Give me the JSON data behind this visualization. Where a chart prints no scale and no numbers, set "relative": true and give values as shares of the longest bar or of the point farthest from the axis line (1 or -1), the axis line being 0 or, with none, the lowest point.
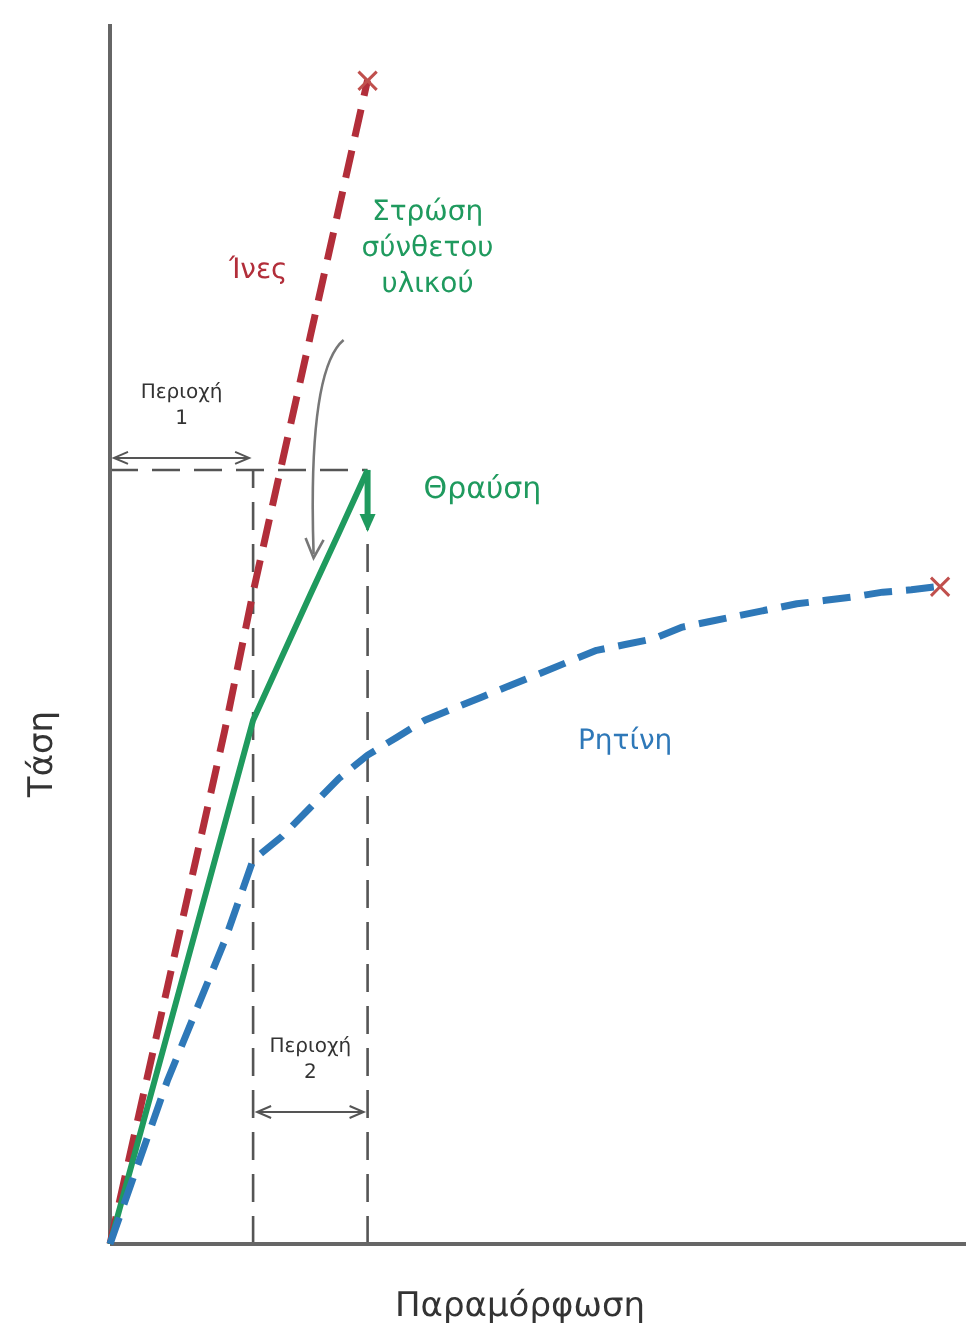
{
  "chart_data": {
    "type": "line",
    "relative": true,
    "xlabel": "Παραμόρφωση",
    "ylabel": "Τάση",
    "tick_labels": false,
    "grid": false,
    "legend": false,
    "categories": [
      null,
      null,
      null,
      null,
      null,
      null,
      null,
      null,
      null,
      null,
      null,
      null,
      null,
      null,
      null,
      null,
      null,
      null,
      null,
      null,
      null,
      null,
      null,
      null,
      null,
      null,
      null,
      null,
      null,
      null
    ],
    "series": [
      {
        "name": "Ίνες",
        "color": "#b22e3a",
        "line_style": "dashed",
        "values": [
          0,
          0.11,
          0.22,
          0.33,
          0.44,
          0.56,
          0.67,
          0.78,
          0.89,
          1,
          null,
          null,
          null,
          null,
          null,
          null,
          null,
          null,
          null,
          null,
          null,
          null,
          null,
          null,
          null,
          null,
          null,
          null,
          null,
          null
        ]
      },
      {
        "name": "Στρώση σύνθετου υλικού",
        "color": "#1f9a5e",
        "line_style": "solid",
        "values": [
          0,
          0.09,
          0.18,
          0.27,
          0.36,
          0.45,
          0.504,
          0.558,
          0.611,
          0.665,
          null,
          null,
          null,
          null,
          null,
          null,
          null,
          null,
          null,
          null,
          null,
          null,
          null,
          null,
          null,
          null,
          null,
          null,
          null,
          null
        ]
      },
      {
        "name": "Ρητίνη",
        "color": "#2e78b8",
        "line_style": "dashed",
        "values": [
          0,
          0.07,
          0.14,
          0.2,
          0.26,
          0.33,
          0.35,
          0.375,
          0.4,
          0.42,
          0.435,
          0.45,
          0.46,
          0.47,
          0.48,
          0.49,
          0.5,
          0.51,
          0.515,
          0.52,
          0.53,
          0.535,
          0.54,
          0.545,
          0.55,
          0.553,
          0.556,
          0.56,
          0.562,
          0.565
        ]
      }
    ],
    "ref_lines": [
      {
        "axis": "y",
        "value": 0.665,
        "color": "#555555",
        "line_style": "dashed"
      }
    ],
    "annotations": [
      "Περιοχή 1",
      "Περιοχή 2",
      "Θραύση",
      "×",
      "×"
    ]
  }
}
